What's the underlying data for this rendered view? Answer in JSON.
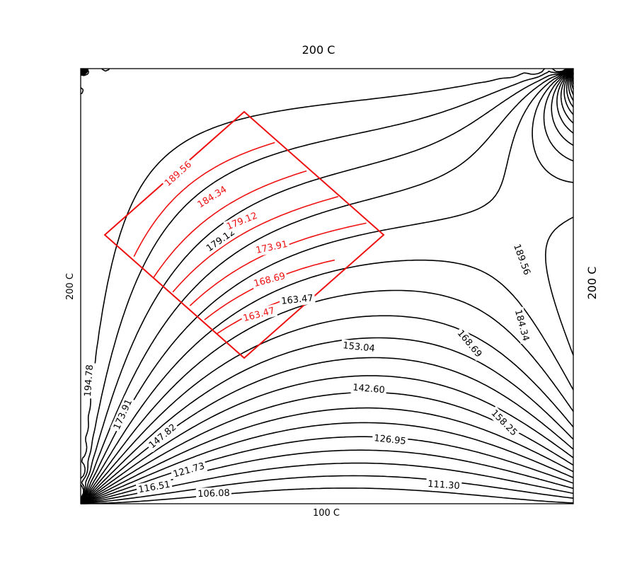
{
  "chart_data": {
    "type": "contour",
    "boundary_labels": {
      "top": "200 C",
      "left": "200 C",
      "right": "200 C",
      "bottom": "100 C"
    },
    "levels": [
      100.86,
      106.08,
      111.3,
      116.51,
      121.73,
      126.95,
      132.17,
      137.38,
      142.6,
      147.82,
      153.04,
      158.25,
      163.47,
      168.69,
      173.91,
      179.12,
      184.34,
      189.56,
      194.78
    ],
    "colors": {
      "contours": "#000000",
      "rotated_region": "#ee1111"
    },
    "black_labels": [
      {
        "text": "194.78",
        "level": 194.78
      },
      {
        "text": "189.56",
        "level": 189.56
      },
      {
        "text": "184.34",
        "level": 184.34
      },
      {
        "text": "179.12",
        "level": 179.12
      },
      {
        "text": "173.91",
        "level": 173.91
      },
      {
        "text": "168.69",
        "level": 168.69
      },
      {
        "text": "163.47",
        "level": 163.47
      },
      {
        "text": "158.25",
        "level": 158.25
      },
      {
        "text": "153.04",
        "level": 153.04
      },
      {
        "text": "147.82",
        "level": 147.82
      },
      {
        "text": "142.60",
        "level": 142.6
      },
      {
        "text": "126.95",
        "level": 126.95
      },
      {
        "text": "121.73",
        "level": 121.73
      },
      {
        "text": "116.51",
        "level": 116.51
      },
      {
        "text": "111.30",
        "level": 111.3
      },
      {
        "text": "106.08",
        "level": 106.08
      }
    ],
    "red_labels": [
      {
        "text": "189.56",
        "level": 189.56
      },
      {
        "text": "184.34",
        "level": 184.34
      },
      {
        "text": "179.12",
        "level": 179.12
      },
      {
        "text": "173.91",
        "level": 173.91
      },
      {
        "text": "168.69",
        "level": 168.69
      },
      {
        "text": "163.47",
        "level": 163.47
      }
    ]
  }
}
